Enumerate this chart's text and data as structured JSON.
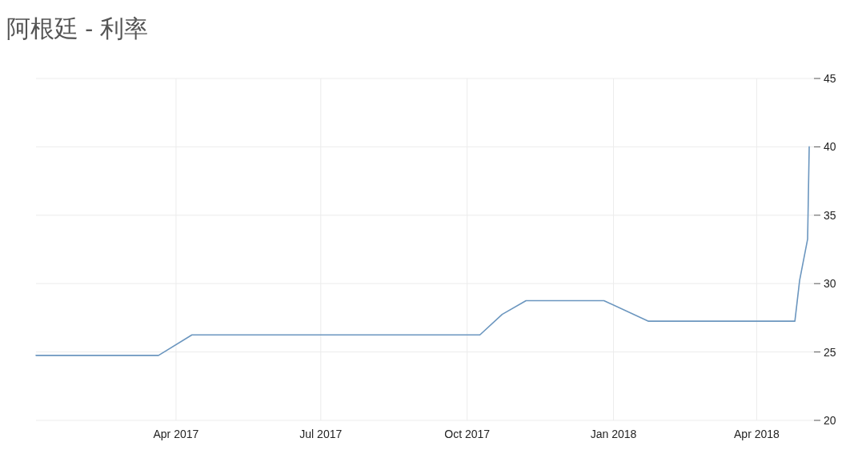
{
  "chart_data": {
    "type": "line",
    "title": "阿根廷 - 利率",
    "x": [
      "2017-01-03",
      "2017-03-21",
      "2017-04-11",
      "2017-10-09",
      "2017-10-23",
      "2017-11-07",
      "2017-12-26",
      "2018-01-23",
      "2018-04-25",
      "2018-04-28",
      "2018-05-03",
      "2018-05-04"
    ],
    "values": [
      24.75,
      24.75,
      26.25,
      26.25,
      27.75,
      28.75,
      28.75,
      27.25,
      27.25,
      30.25,
      33.25,
      40
    ],
    "color": "#6b96bf",
    "xlim": [
      "2017-01-03",
      "2018-05-07"
    ],
    "ylim": [
      20,
      45
    ],
    "xticks": [
      {
        "value": "2017-04-01",
        "label": "Apr 2017"
      },
      {
        "value": "2017-07-01",
        "label": "Jul 2017"
      },
      {
        "value": "2017-10-01",
        "label": "Oct 2017"
      },
      {
        "value": "2018-01-01",
        "label": "Jan 2018"
      },
      {
        "value": "2018-04-01",
        "label": "Apr 2018"
      }
    ],
    "yticks": [
      20,
      25,
      30,
      35,
      40,
      45
    ],
    "grid": true
  }
}
